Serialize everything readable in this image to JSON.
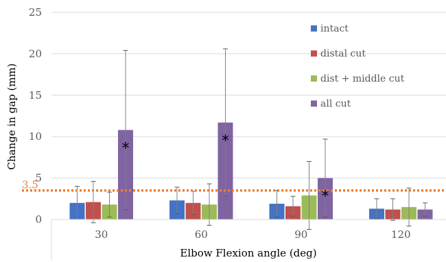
{
  "chart_data": {
    "type": "bar",
    "categories": [
      "30",
      "60",
      "90",
      "120"
    ],
    "xlabel": "Elbow Flexion angle (deg)",
    "ylabel": "Change in gap (mm)",
    "ylim": [
      0,
      25
    ],
    "yticks": [
      0,
      5,
      10,
      15,
      20,
      25
    ],
    "grid": true,
    "legend_position": "right",
    "series": [
      {
        "name": "intact",
        "color": "#4472c4",
        "values": [
          2.0,
          2.3,
          1.9,
          1.3
        ],
        "error": [
          2.0,
          1.6,
          1.6,
          1.2
        ]
      },
      {
        "name": "distal cut",
        "color": "#c0504d",
        "values": [
          2.1,
          2.0,
          1.6,
          1.2
        ],
        "error": [
          2.5,
          1.4,
          1.2,
          1.3
        ]
      },
      {
        "name": "dist + middle cut",
        "color": "#9bbb59",
        "values": [
          1.8,
          1.8,
          2.9,
          1.5
        ],
        "error": [
          1.5,
          2.5,
          4.1,
          2.3
        ]
      },
      {
        "name": "all cut",
        "color": "#8064a2",
        "values": [
          10.8,
          11.7,
          5.0,
          1.2
        ],
        "error": [
          9.6,
          8.9,
          4.7,
          0.8
        ]
      }
    ],
    "significance_markers": [
      {
        "category": "30",
        "series": "all cut",
        "symbol": "*"
      },
      {
        "category": "60",
        "series": "all cut",
        "symbol": "*"
      },
      {
        "category": "90",
        "series": "all cut",
        "symbol": "*"
      }
    ],
    "reference_line": {
      "value": 3.5,
      "label": "3.5",
      "color": "#ed7d31",
      "style": "dotted"
    }
  }
}
